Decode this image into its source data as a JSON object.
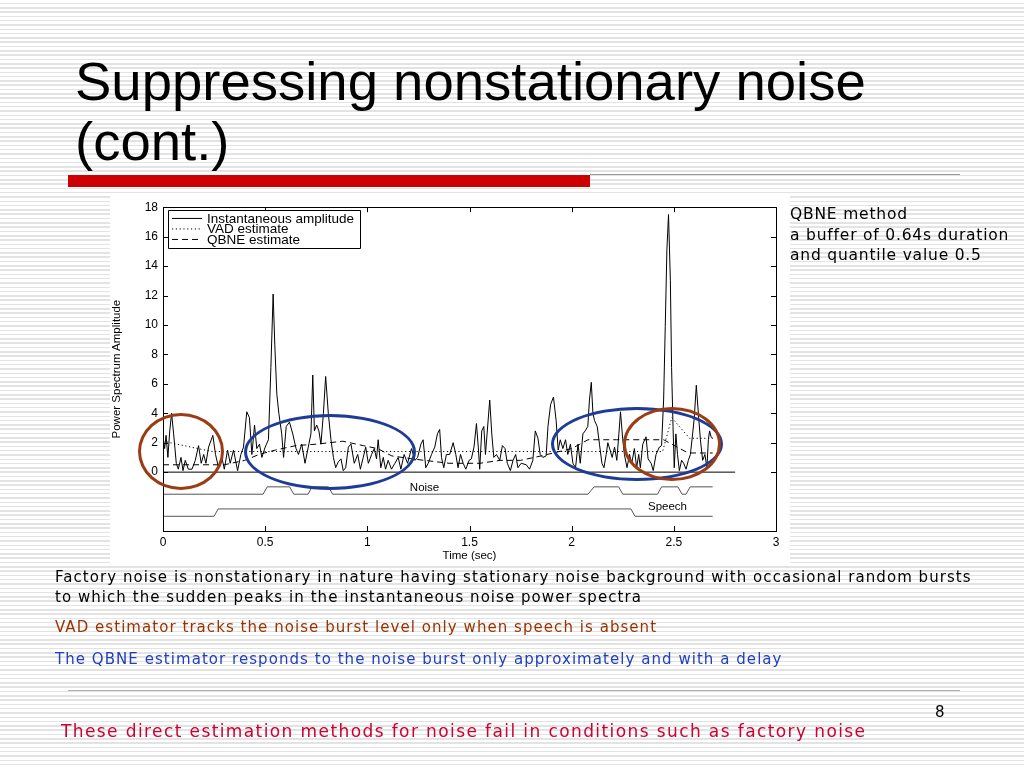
{
  "chart_data": {
    "type": "line",
    "title": "Suppressing nonstationary noise (cont.)",
    "xlabel": "Time (sec)",
    "ylabel": "Power Spectrum Amplitude",
    "xlim": [
      0,
      3
    ],
    "xticks": [
      0,
      0.5,
      1,
      1.5,
      2,
      2.5,
      3
    ],
    "ylim": [
      -4,
      18
    ],
    "yticks": [
      0,
      2,
      4,
      6,
      8,
      10,
      12,
      14,
      16,
      18
    ],
    "legend": "top left",
    "series": [
      {
        "name": "Instantaneous amplitude",
        "color": "#000000",
        "line_style": "solid",
        "x": [
          0,
          0.008,
          0.015,
          0.024,
          0.033,
          0.042,
          0.052,
          0.065,
          0.075,
          0.088,
          0.098,
          0.109,
          0.124,
          0.142,
          0.158,
          0.174,
          0.187,
          0.199,
          0.21,
          0.223,
          0.244,
          0.257,
          0.272,
          0.288,
          0.3,
          0.316,
          0.329,
          0.345,
          0.365,
          0.381,
          0.394,
          0.41,
          0.423,
          0.435,
          0.448,
          0.459,
          0.472,
          0.484,
          0.5,
          0.516,
          0.528,
          0.539,
          0.547,
          0.557,
          0.567,
          0.581,
          0.59,
          0.603,
          0.619,
          0.635,
          0.651,
          0.663,
          0.679,
          0.695,
          0.711,
          0.724,
          0.733,
          0.741,
          0.752,
          0.763,
          0.773,
          0.785,
          0.796,
          0.809,
          0.822,
          0.834,
          0.845,
          0.858,
          0.871,
          0.882,
          0.894,
          0.907,
          0.92,
          0.936,
          0.953,
          0.966,
          0.98,
          0.992,
          1.005,
          1.021,
          1.034,
          1.045,
          1.053,
          1.066,
          1.078,
          1.089,
          1.102,
          1.118,
          1.135,
          1.151,
          1.164,
          1.18,
          1.197,
          1.216,
          1.233,
          1.246,
          1.262,
          1.273,
          1.286,
          1.298,
          1.314,
          1.33,
          1.343,
          1.354,
          1.363,
          1.374,
          1.387,
          1.403,
          1.42,
          1.433,
          1.444,
          1.456,
          1.469,
          1.482,
          1.498,
          1.509,
          1.522,
          1.534,
          1.543,
          1.55,
          1.56,
          1.57,
          1.578,
          1.586,
          1.599,
          1.609,
          1.619,
          1.632,
          1.648,
          1.661,
          1.674,
          1.685,
          1.7,
          1.713,
          1.726,
          1.737,
          1.753,
          1.778,
          1.794,
          1.81,
          1.822,
          1.835,
          1.846,
          1.859,
          1.875,
          1.884,
          1.897,
          1.911,
          1.924,
          1.934,
          1.944,
          1.957,
          1.97,
          1.981,
          1.994,
          2.006,
          2.019,
          2.031,
          2.042,
          2.055,
          2.066,
          2.079,
          2.087,
          2.096,
          2.104,
          2.112,
          2.125,
          2.136,
          2.148,
          2.158,
          2.169,
          2.177,
          2.188,
          2.198,
          2.21,
          2.221,
          2.231,
          2.239,
          2.25,
          2.258,
          2.271,
          2.283,
          2.294,
          2.307,
          2.318,
          2.328,
          2.336,
          2.348,
          2.364,
          2.374,
          2.389,
          2.399,
          2.413,
          2.429,
          2.44,
          2.45,
          2.458,
          2.466,
          2.474,
          2.483,
          2.489,
          2.496,
          2.502,
          2.51,
          2.518,
          2.527,
          2.538,
          2.548,
          2.56,
          2.571,
          2.581,
          2.592,
          2.6,
          2.61,
          2.62,
          2.63,
          2.641,
          2.652,
          2.662,
          2.669,
          2.675,
          2.682,
          2.69
        ],
        "values": [
          2.4,
          1.6,
          2.5,
          1.0,
          2.8,
          4.0,
          2.6,
          0.6,
          0.2,
          1.0,
          0.1,
          0.8,
          0.2,
          0.2,
          0.8,
          1.8,
          0.6,
          1.2,
          0.6,
          1.7,
          2.5,
          1.2,
          0.3,
          1.0,
          0.2,
          1.5,
          0.6,
          1.5,
          0.1,
          1.2,
          1.7,
          4.1,
          3.7,
          1.2,
          3.2,
          1.6,
          1.9,
          1.0,
          1.7,
          2.2,
          7.1,
          12.1,
          8.7,
          5.3,
          4.0,
          2.6,
          1.0,
          3.1,
          3.4,
          2.6,
          1.6,
          1.2,
          1.9,
          0.6,
          1.7,
          2.6,
          6.6,
          2.8,
          3.2,
          2.8,
          1.9,
          4.0,
          6.5,
          4.0,
          2.2,
          1.0,
          0.3,
          0.7,
          0.9,
          0.1,
          0.3,
          1.7,
          1.9,
          0.6,
          1.2,
          0.2,
          1.0,
          1.7,
          0.6,
          1.2,
          1.6,
          0.9,
          2.2,
          0.3,
          1.0,
          0.2,
          0.8,
          0.2,
          0.6,
          1.0,
          0.2,
          1.2,
          0.6,
          1.6,
          0.8,
          1.0,
          1.9,
          2.2,
          0.3,
          0.6,
          1.2,
          1.7,
          2.6,
          2.9,
          1.0,
          0.3,
          1.2,
          1.2,
          2.0,
          1.2,
          0.3,
          1.2,
          0.6,
          0.2,
          0.8,
          0.9,
          1.7,
          3.3,
          1.7,
          0.2,
          2.8,
          3.1,
          1.2,
          2.6,
          4.9,
          2.6,
          1.0,
          1.2,
          0.8,
          1.8,
          1.6,
          0.6,
          0.1,
          0.8,
          1.2,
          0.3,
          0.6,
          0.5,
          0.2,
          0.8,
          2.8,
          2.3,
          1.2,
          1.0,
          1.1,
          3.1,
          4.6,
          5.1,
          3.5,
          1.5,
          2.2,
          1.6,
          2.2,
          1.2,
          1.9,
          0.6,
          0.3,
          1.9,
          0.6,
          2.6,
          2.8,
          3.1,
          4.9,
          6.1,
          4.0,
          3.5,
          3.1,
          1.9,
          0.6,
          0.3,
          1.2,
          2.0,
          1.5,
          1.0,
          1.7,
          0.8,
          2.6,
          4.1,
          2.2,
          1.2,
          0.3,
          1.2,
          0.6,
          1.6,
          0.3,
          1.2,
          0.3,
          1.9,
          2.4,
          0.9,
          0.6,
          0.1,
          1.2,
          1.7,
          1.8,
          4.9,
          9.9,
          15.1,
          17.5,
          13.0,
          7.1,
          3.1,
          0.3,
          2.6,
          1.2,
          0.1,
          0.8,
          0.6,
          0.2,
          0.8,
          1.2,
          2.6,
          3.7,
          5.9,
          4.0,
          2.2,
          0.8,
          1.2,
          0.3,
          2.2,
          2.8,
          2.4,
          2.3
        ]
      },
      {
        "name": "VAD estimate",
        "color": "#000000",
        "line_style": "dotted",
        "x": [
          0,
          0.24,
          2.445,
          2.49,
          2.577,
          2.69
        ],
        "values": [
          2.1,
          1.4,
          1.4,
          3.7,
          2.3,
          2.3
        ]
      },
      {
        "name": "QBNE estimate",
        "color": "#000000",
        "line_style": "dashed",
        "x": [
          0,
          0.3,
          0.4,
          0.47,
          0.55,
          0.65,
          0.75,
          0.88,
          0.98,
          1.05,
          1.12,
          1.22,
          1.4,
          1.55,
          1.65,
          1.75,
          1.85,
          2.0,
          2.08,
          2.22,
          2.45,
          2.57,
          2.69
        ],
        "values": [
          0.5,
          0.5,
          0.8,
          1.2,
          1.5,
          1.8,
          1.9,
          2.1,
          1.8,
          1.6,
          1.1,
          0.9,
          0.6,
          0.6,
          0.8,
          0.8,
          1.1,
          1.6,
          2.2,
          2.2,
          2.2,
          1.3,
          1.3
        ]
      },
      {
        "color": "#000000",
        "x": [
          0,
          2.8
        ],
        "values": [
          0,
          0
        ]
      },
      {
        "color": "#555555",
        "x": [
          0,
          0.49,
          0.51,
          0.62,
          0.64,
          0.71,
          0.73,
          0.81,
          0.83,
          2.08,
          2.11,
          2.23,
          2.25,
          2.42,
          2.44,
          2.52,
          2.54,
          2.56,
          2.58,
          2.69
        ],
        "values": [
          -1.5,
          -1.5,
          -1.0,
          -1.0,
          -1.5,
          -1.5,
          -1.0,
          -1.0,
          -1.5,
          -1.5,
          -1.0,
          -1.0,
          -1.5,
          -1.5,
          -1.0,
          -1.0,
          -1.5,
          -1.5,
          -1.0,
          -1.0
        ]
      },
      {
        "color": "#555555",
        "x": [
          0,
          0.25,
          0.27,
          2.29,
          2.31,
          2.69
        ],
        "values": [
          -3.0,
          -3.0,
          -2.5,
          -2.5,
          -3.0,
          -3.0
        ]
      }
    ],
    "annotations": [
      "QBNE method\na buffer of 0.64s duration\nand quantile value 0.5",
      "Factory noise is nonstationary in nature having stationary noise background with occasional random bursts to which the sudden peaks in the instantaneous noise power spectra",
      "VAD estimator tracks the noise burst level only when speech is absent",
      "The QBNE estimator responds to the noise burst only approximately and with a delay",
      "These direct estimation methods for noise fail in conditions such as factory noise",
      "8",
      {
        "text": "Noise",
        "x": 1.28,
        "y": -1.1
      },
      "Speech"
    ]
  }
}
